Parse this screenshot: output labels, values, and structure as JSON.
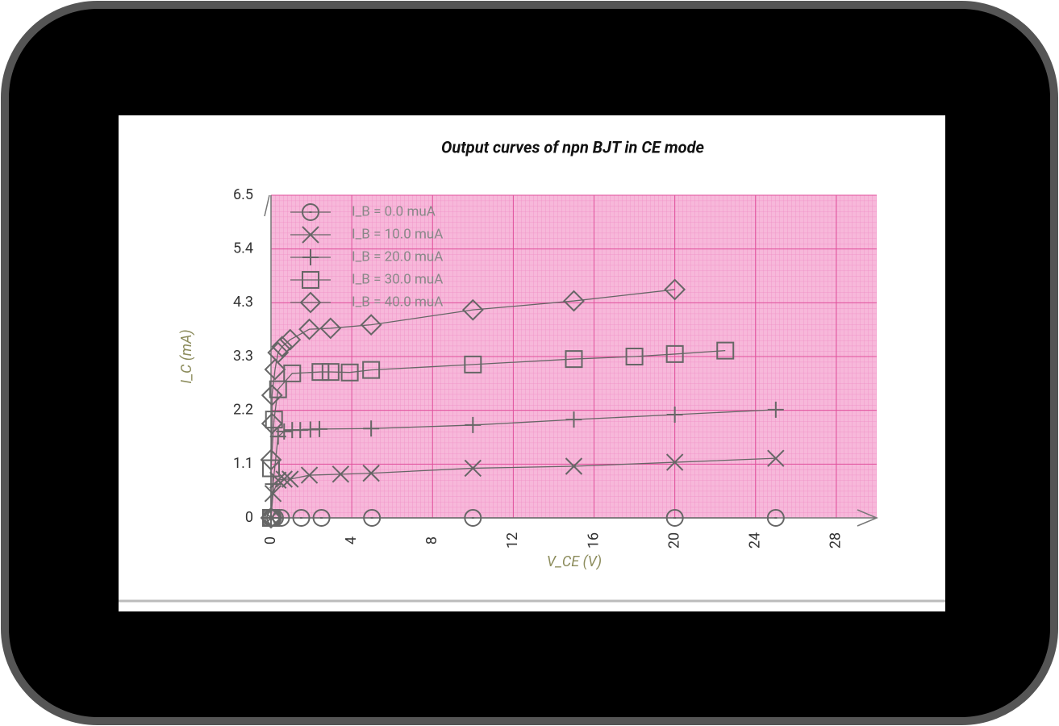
{
  "chart_data": {
    "type": "scatter",
    "title": "Output curves of npn BJT in CE mode",
    "x_label": "V_CE (V)",
    "y_label": "I_C (mA)",
    "xlim": [
      0,
      30
    ],
    "xticks": [
      0,
      4,
      8,
      12,
      16,
      20,
      24,
      28
    ],
    "ylim": [
      0,
      6.5
    ],
    "yticks": [
      0,
      {
        "value": 1.0833,
        "label": "1.1"
      },
      {
        "value": 2.1667,
        "label": "2.2"
      },
      {
        "value": 3.25,
        "label": "3.3"
      },
      {
        "value": 4.3333,
        "label": "4.3"
      },
      {
        "value": 5.4167,
        "label": "5.4"
      },
      6.5
    ],
    "grid": true,
    "grid_color": "#e0509c",
    "legend": "upper left",
    "series": [
      {
        "name": "I_B = 0.0 muA",
        "color": "#666666",
        "marker": "circle-dot",
        "x": [
          0,
          0.1,
          0.2,
          0.5,
          1.5,
          2.5,
          5,
          10,
          20,
          25
        ],
        "values": [
          0,
          0,
          0,
          0,
          0,
          0,
          0,
          0,
          0,
          0
        ]
      },
      {
        "name": "I_B = 10.0 muA",
        "color": "#666666",
        "marker": "x",
        "x": [
          0,
          0.1,
          0.35,
          0.65,
          0.95,
          1.9,
          3.45,
          4.96,
          10,
          15,
          20,
          25
        ],
        "values": [
          0,
          0.49,
          0.76,
          0.78,
          0.78,
          0.86,
          0.88,
          0.9,
          1.0,
          1.04,
          1.12,
          1.2
        ]
      },
      {
        "name": "I_B = 20.0 muA",
        "color": "#666666",
        "marker": "plus",
        "x": [
          0,
          0.1,
          0.35,
          0.65,
          1.05,
          1.45,
          1.95,
          2.4,
          4.96,
          10,
          15,
          20,
          25
        ],
        "values": [
          0,
          0.68,
          1.64,
          1.74,
          1.77,
          1.77,
          1.78,
          1.79,
          1.8,
          1.87,
          1.98,
          2.08,
          2.18
        ]
      },
      {
        "name": "I_B = 30.0 muA",
        "color": "#666666",
        "marker": "square",
        "x": [
          0,
          0,
          0.15,
          0.35,
          1.05,
          2.45,
          2.95,
          3.9,
          4.96,
          10,
          15,
          18,
          20,
          22.5
        ],
        "values": [
          0,
          1.0,
          1.98,
          2.59,
          2.91,
          2.94,
          2.94,
          2.93,
          2.98,
          3.09,
          3.2,
          3.25,
          3.3,
          3.37
        ]
      },
      {
        "name": "I_B = 40.0 muA",
        "color": "#666666",
        "marker": "diamond",
        "x": [
          0,
          0,
          0.05,
          0.05,
          0.2,
          0.35,
          0.55,
          0.95,
          1.9,
          2.95,
          4.96,
          10,
          15,
          20
        ],
        "values": [
          0,
          1.17,
          1.9,
          2.47,
          2.99,
          3.33,
          3.45,
          3.59,
          3.8,
          3.82,
          3.89,
          4.19,
          4.37,
          4.6
        ]
      }
    ]
  }
}
